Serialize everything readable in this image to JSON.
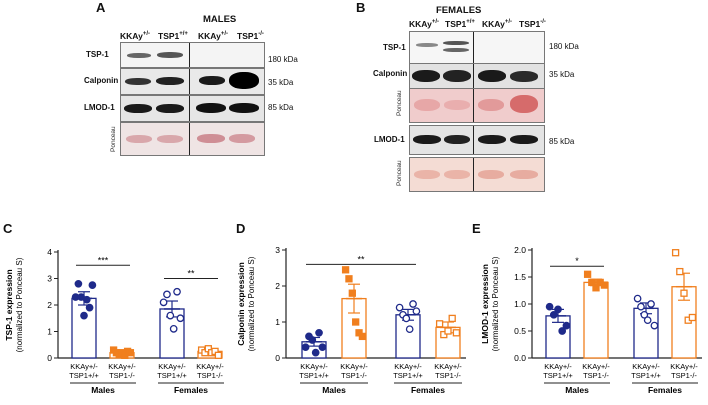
{
  "panel_a": {
    "letter": "A",
    "title": "MALES",
    "groups": [
      {
        "name": "KKAy",
        "sup": "+/-"
      },
      {
        "name": "TSP1",
        "sup": "+/+"
      },
      {
        "name": "KKAy",
        "sup": "+/-"
      },
      {
        "name": "TSP1",
        "sup": "-/-"
      }
    ],
    "rows": [
      {
        "label": "TSP-1",
        "kda": "180 kDa"
      },
      {
        "label": "Calponin",
        "kda": "35 kDa"
      },
      {
        "label": "LMOD-1",
        "kda": "85 kDa"
      },
      {
        "label": "Ponceau",
        "kda": ""
      }
    ]
  },
  "panel_b": {
    "letter": "B",
    "title": "FEMALES",
    "groups": [
      {
        "name": "KKAy",
        "sup": "+/-"
      },
      {
        "name": "TSP1",
        "sup": "+/+"
      },
      {
        "name": "KKAy",
        "sup": "+/-"
      },
      {
        "name": "TSP1",
        "sup": "-/-"
      }
    ],
    "rows": [
      {
        "label": "TSP-1",
        "kda": "180 kDa"
      },
      {
        "label": "Calponin",
        "kda": "35 kDa"
      },
      {
        "label": "Ponceau",
        "kda": ""
      },
      {
        "label": "LMOD-1",
        "kda": "85 kDa"
      },
      {
        "label": "Ponceau",
        "kda": ""
      }
    ]
  },
  "chart_data": [
    {
      "panel": "C",
      "type": "bar",
      "ylabel": "TSP-1 expression",
      "ylabel2": "(normalized to Ponceau S)",
      "ylim": [
        0,
        4
      ],
      "yticks": [
        0,
        1,
        2,
        3,
        4
      ],
      "categories": [
        "KKAy+/- TSP1+/+",
        "KKAy+/- TSP1-/-",
        "KKAy+/- TSP1+/+",
        "KKAy+/- TSP1-/-"
      ],
      "cat_line1": [
        "KKAy+/-",
        "KKAy+/-",
        "KKAy+/-",
        "KKAy+/-"
      ],
      "cat_line2": [
        "TSP1+/+",
        "TSP1-/-",
        "TSP1+/+",
        "TSP1-/-"
      ],
      "sexes": [
        "Males",
        "Females"
      ],
      "values": [
        2.25,
        0.2,
        1.85,
        0.25
      ],
      "errors": [
        0.25,
        0.05,
        0.3,
        0.05
      ],
      "colors": [
        "#1f2a8a",
        "#f07f1e",
        "#1f2a8a",
        "#f07f1e"
      ],
      "filled": [
        true,
        true,
        false,
        false
      ],
      "points": [
        [
          2.3,
          2.8,
          2.3,
          1.6,
          2.2,
          1.9,
          2.75
        ],
        [
          0.3,
          0.2,
          0.15,
          0.2,
          0.1,
          0.25,
          0.2
        ],
        [
          2.1,
          2.4,
          1.6,
          1.1,
          2.5,
          1.5
        ],
        [
          0.3,
          0.2,
          0.35,
          0.2,
          0.25,
          0.1
        ]
      ],
      "significance": [
        {
          "from": 0,
          "to": 1,
          "label": "***",
          "y": 3.5
        },
        {
          "from": 2,
          "to": 3,
          "label": "**",
          "y": 3.0
        }
      ]
    },
    {
      "panel": "D",
      "type": "bar",
      "ylabel": "Calponin expression",
      "ylabel2": "(normalized to Ponceau S)",
      "ylim": [
        0,
        3
      ],
      "yticks": [
        0,
        1,
        2,
        3
      ],
      "categories": [
        "KKAy+/- TSP1+/+",
        "KKAy+/- TSP1-/-",
        "KKAy+/- TSP1+/+",
        "KKAy+/- TSP1-/-"
      ],
      "cat_line1": [
        "KKAy+/-",
        "KKAy+/-",
        "KKAy+/-",
        "KKAy+/-"
      ],
      "cat_line2": [
        "TSP1+/+",
        "TSP1-/-",
        "TSP1+/+",
        "TSP1-/-"
      ],
      "sexes": [
        "Males",
        "Females"
      ],
      "values": [
        0.45,
        1.65,
        1.2,
        0.85
      ],
      "errors": [
        0.12,
        0.4,
        0.15,
        0.15
      ],
      "colors": [
        "#1f2a8a",
        "#f07f1e",
        "#1f2a8a",
        "#f07f1e"
      ],
      "filled": [
        true,
        true,
        false,
        false
      ],
      "points": [
        [
          0.3,
          0.6,
          0.5,
          0.15,
          0.7,
          0.3
        ],
        [
          2.45,
          2.2,
          1.8,
          1.0,
          0.7,
          0.6
        ],
        [
          1.4,
          1.2,
          1.1,
          0.8,
          1.5,
          1.3
        ],
        [
          0.95,
          0.65,
          0.75,
          1.1,
          0.7
        ]
      ],
      "significance": [
        {
          "from": 0,
          "to": 2,
          "label": "**",
          "y": 2.6
        }
      ]
    },
    {
      "panel": "E",
      "type": "bar",
      "ylabel": "LMOD-1 expression",
      "ylabel2": "(normalized to Ponceau S)",
      "ylim": [
        0,
        2.0
      ],
      "yticks": [
        0.0,
        0.5,
        1.0,
        1.5,
        2.0
      ],
      "ytick_labels": [
        "0.0",
        "0.5",
        "1.0",
        "1.5",
        "2.0"
      ],
      "categories": [
        "KKAy+/- TSP1+/+",
        "KKAy+/- TSP1-/-",
        "KKAy+/- TSP1+/+",
        "KKAy+/- TSP1-/-"
      ],
      "cat_line1": [
        "KKAy+/-",
        "KKAy+/-",
        "KKAy+/-",
        "KKAy+/-"
      ],
      "cat_line2": [
        "TSP1+/+",
        "TSP1-/-",
        "TSP1+/+",
        "TSP1-/-"
      ],
      "sexes": [
        "Males",
        "Females"
      ],
      "values": [
        0.78,
        1.4,
        0.92,
        1.32
      ],
      "errors": [
        0.12,
        0.06,
        0.1,
        0.25
      ],
      "colors": [
        "#1f2a8a",
        "#f07f1e",
        "#1f2a8a",
        "#f07f1e"
      ],
      "filled": [
        true,
        true,
        false,
        false
      ],
      "points": [
        [
          0.95,
          0.8,
          0.9,
          0.5,
          0.6
        ],
        [
          1.55,
          1.4,
          1.3,
          1.4,
          1.35
        ],
        [
          1.1,
          0.95,
          0.8,
          0.7,
          1.0,
          0.6
        ],
        [
          1.95,
          1.6,
          1.2,
          0.7,
          0.75
        ]
      ],
      "significance": [
        {
          "from": 0,
          "to": 1,
          "label": "*",
          "y": 1.7
        }
      ]
    }
  ]
}
